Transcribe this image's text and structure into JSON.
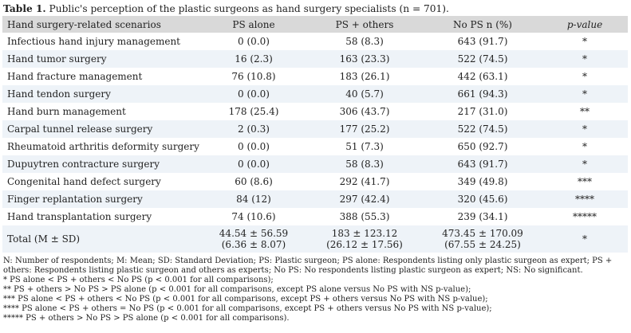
{
  "caption": {
    "label": "Table 1.",
    "text": " Public's perception of the plastic surgeons as hand surgery specialists (n = 701)."
  },
  "table": {
    "headers": [
      "Hand surgery-related scenarios",
      "PS alone",
      "PS + others",
      "No PS n (%)",
      "p-value"
    ],
    "rows": [
      [
        "Infectious hand injury management",
        "0 (0.0)",
        "58 (8.3)",
        "643 (91.7)",
        "*"
      ],
      [
        "Hand tumor surgery",
        "16 (2.3)",
        "163 (23.3)",
        "522 (74.5)",
        "*"
      ],
      [
        "Hand fracture management",
        "76 (10.8)",
        "183 (26.1)",
        "442 (63.1)",
        "*"
      ],
      [
        "Hand tendon surgery",
        "0 (0.0)",
        "40 (5.7)",
        "661 (94.3)",
        "*"
      ],
      [
        "Hand burn management",
        "178 (25.4)",
        "306 (43.7)",
        "217 (31.0)",
        "**"
      ],
      [
        "Carpal tunnel release surgery",
        "2 (0.3)",
        "177 (25.2)",
        "522 (74.5)",
        "*"
      ],
      [
        "Rheumatoid arthritis deformity surgery",
        "0 (0.0)",
        "51 (7.3)",
        "650 (92.7)",
        "*"
      ],
      [
        "Dupuytren contracture surgery",
        "0 (0.0)",
        "58 (8.3)",
        "643 (91.7)",
        "*"
      ],
      [
        "Congenital hand defect surgery",
        "60 (8.6)",
        "292 (41.7)",
        "349 (49.8)",
        "***"
      ],
      [
        "Finger replantation surgery",
        "84 (12)",
        "297 (42.4)",
        "320 (45.6)",
        "****"
      ],
      [
        "Hand transplantation surgery",
        "74 (10.6)",
        "388 (55.3)",
        "239 (34.1)",
        "*****"
      ]
    ],
    "total": {
      "label": "Total (M ± SD)",
      "ps_alone": [
        "44.54 ± 56.59",
        "(6.36 ± 8.07)"
      ],
      "ps_others": [
        "183 ± 123.12",
        "(26.12 ± 17.56)"
      ],
      "no_ps": [
        "473.45 ± 170.09",
        "(67.55 ± 24.25)"
      ],
      "p": "*"
    }
  },
  "notes": {
    "abbrev": "N: Number of respondents; M: Mean; SD: Standard Deviation; PS: Plastic surgeon; PS alone: Respondents listing only plastic surgeon as expert; PS + others: Respondents listing plastic surgeon and others as experts; No PS: No respondents listing plastic surgeon as expert; NS: No significant.",
    "n1": "* PS alone < PS + others < No PS (p < 0.001 for all comparisons);",
    "n2": "** PS + others > No PS > PS alone (p < 0.001 for all comparisons, except PS alone versus No PS with NS p-value);",
    "n3": "*** PS alone < PS + others < No PS (p < 0.001 for all comparisons, except PS + others versus No PS with NS p-value);",
    "n4": "**** PS alone < PS + others = No PS (p < 0.001 for all comparisons, except PS + others versus No PS with NS p-value);",
    "n5": "***** PS + others > No PS > PS alone (p < 0.001 for all comparisons)."
  }
}
